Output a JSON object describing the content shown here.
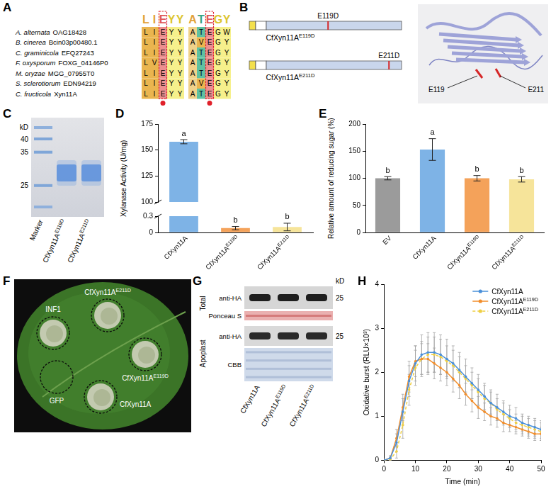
{
  "panels": {
    "A": {
      "letter": "A",
      "logo": [
        "LIEYY",
        "ATEGY"
      ],
      "rows": [
        {
          "species": "A. alternata",
          "accession": "OAG18428",
          "blocks": [
            "LIEYY",
            "ATEGW"
          ]
        },
        {
          "species": "B. cinerea",
          "accession": "Bcin03p00480.1",
          "blocks": [
            "LIEYY",
            "AVEGY"
          ]
        },
        {
          "species": "C. graminicola",
          "accession": "EFQ27243",
          "blocks": [
            "LIEYY",
            "ATEGY"
          ]
        },
        {
          "species": "F. oxysporum",
          "accession": "FOXG_04146P0",
          "blocks": [
            "LVEYY",
            "ATEGY"
          ]
        },
        {
          "species": "M. oryzae",
          "accession": "MGG_07955T0",
          "blocks": [
            "LIEYY",
            "ATEGY"
          ]
        },
        {
          "species": "S. sclerotiorum",
          "accession": "EDN94219",
          "blocks": [
            "LIEYY",
            "AVEGY"
          ]
        },
        {
          "species": "C. fructicola",
          "accession": "Xyn11A",
          "blocks": [
            "LIEYY",
            "ATEGY"
          ]
        }
      ],
      "marked_columns": [
        2,
        2
      ]
    },
    "B": {
      "letter": "B",
      "constructs": [
        {
          "mutation": "E119D",
          "name": "CfXyn11AE119D"
        },
        {
          "mutation": "E211D",
          "name": "CfXyn11AE211D"
        }
      ],
      "structure_labels": [
        "E119",
        "E211"
      ]
    },
    "C": {
      "letter": "C",
      "unit": "kD",
      "ladder": [
        40,
        35,
        25
      ],
      "lanes": [
        "Marker",
        "CfXyn11AE119D",
        "CfXyn11AE211D"
      ]
    },
    "F": {
      "letter": "F",
      "spots": [
        {
          "label": "INF1",
          "necrosis": true
        },
        {
          "label": "CfXyn11AE211D",
          "necrosis": true
        },
        {
          "label": "CfXyn11AE119D",
          "necrosis": true
        },
        {
          "label": "GFP",
          "necrosis": false
        },
        {
          "label": "CfXyn11A",
          "necrosis": true
        }
      ]
    },
    "G": {
      "letter": "G",
      "unit": "kD",
      "groups": [
        {
          "name": "Total",
          "rows": [
            {
              "label": "anti-HA",
              "size": 25
            },
            {
              "label": "Ponceau S"
            }
          ]
        },
        {
          "name": "Apoplast",
          "rows": [
            {
              "label": "anti-HA",
              "size": 25
            },
            {
              "label": "CBB"
            }
          ]
        }
      ],
      "lanes": [
        "CfXyn11A",
        "CfXyn11AE119D",
        "CfXyn11AE211D"
      ]
    }
  },
  "chart_data": [
    {
      "panel": "D",
      "type": "bar",
      "categories": [
        "CfXyn11A",
        "CfXyn11AE119D",
        "CfXyn11AE211D"
      ],
      "values": [
        158,
        0.08,
        0.1
      ],
      "errors": [
        2,
        0.03,
        0.07
      ],
      "letters": [
        "a",
        "b",
        "b"
      ],
      "colors": [
        "#7eb3e6",
        "#f4a25a",
        "#f6e49a"
      ],
      "ylabel": "Xylanase Activity (U/mg)",
      "ylim": [
        0,
        175
      ],
      "yticks": [
        0,
        0.3,
        100,
        125,
        150,
        175
      ],
      "y_break": [
        0.3,
        100
      ],
      "grid": false
    },
    {
      "panel": "E",
      "type": "bar",
      "categories": [
        "EV",
        "CfXyn11A",
        "CfXyn11AE119D",
        "CfXyn11AE211D"
      ],
      "values": [
        100,
        153,
        100,
        98
      ],
      "errors": [
        3,
        20,
        5,
        5
      ],
      "letters": [
        "b",
        "a",
        "b",
        "b"
      ],
      "colors": [
        "#9b9b9b",
        "#7eb3e6",
        "#f4a25a",
        "#f6e49a"
      ],
      "ylabel": "Relative amount of reducing sugar (%)",
      "ylim": [
        0,
        200
      ],
      "yticks": [
        0,
        50,
        100,
        150,
        200
      ],
      "grid": false
    },
    {
      "panel": "H",
      "type": "line",
      "x": [
        0,
        2,
        4,
        6,
        8,
        10,
        12,
        14,
        16,
        18,
        20,
        22,
        24,
        26,
        28,
        30,
        32,
        34,
        36,
        38,
        40,
        42,
        44,
        46,
        48,
        50
      ],
      "series": [
        {
          "name": "CfXyn11A",
          "color": "#4a90d9",
          "marker": "circle",
          "line_style": "solid",
          "values": [
            0,
            0.05,
            0.4,
            1.1,
            1.8,
            2.2,
            2.4,
            2.45,
            2.45,
            2.4,
            2.3,
            2.2,
            2.05,
            1.9,
            1.75,
            1.6,
            1.45,
            1.3,
            1.2,
            1.1,
            1.0,
            0.95,
            0.85,
            0.8,
            0.75,
            0.7
          ],
          "errors": [
            0,
            0.05,
            0.2,
            0.3,
            0.35,
            0.4,
            0.45,
            0.45,
            0.45,
            0.45,
            0.45,
            0.4,
            0.4,
            0.4,
            0.35,
            0.35,
            0.3,
            0.3,
            0.3,
            0.25,
            0.25,
            0.25,
            0.2,
            0.2,
            0.2,
            0.2
          ]
        },
        {
          "name": "CfXyn11AE119D",
          "color": "#f28e2b",
          "marker": "circle",
          "line_style": "solid",
          "values": [
            0,
            0.05,
            0.5,
            1.2,
            1.9,
            2.25,
            2.3,
            2.3,
            2.2,
            2.1,
            2.0,
            1.85,
            1.7,
            1.5,
            1.35,
            1.2,
            1.1,
            1.0,
            0.95,
            0.85,
            0.8,
            0.75,
            0.7,
            0.65,
            0.6,
            0.6
          ],
          "errors": [
            0,
            0.05,
            0.2,
            0.3,
            0.35,
            0.35,
            0.35,
            0.35,
            0.35,
            0.3,
            0.3,
            0.3,
            0.3,
            0.25,
            0.25,
            0.25,
            0.2,
            0.2,
            0.2,
            0.2,
            0.15,
            0.15,
            0.15,
            0.15,
            0.15,
            0.15
          ]
        },
        {
          "name": "CfXyn11AE211D",
          "color": "#efcf45",
          "marker": "circle",
          "line_style": "dashed",
          "values": [
            0,
            0.02,
            0.2,
            0.8,
            1.6,
            2.1,
            2.3,
            2.4,
            2.4,
            2.35,
            2.25,
            2.15,
            2.0,
            1.85,
            1.7,
            1.55,
            1.4,
            1.3,
            1.15,
            1.05,
            0.95,
            0.85,
            0.8,
            0.75,
            0.7,
            0.65
          ],
          "errors": [
            0,
            0.02,
            0.15,
            0.3,
            0.35,
            0.4,
            0.4,
            0.4,
            0.4,
            0.4,
            0.35,
            0.35,
            0.35,
            0.3,
            0.3,
            0.3,
            0.3,
            0.25,
            0.25,
            0.25,
            0.2,
            0.2,
            0.2,
            0.2,
            0.2,
            0.2
          ]
        }
      ],
      "xlabel": "Time (min)",
      "ylabel": "Oxidative burst (RLU×10³)",
      "xlim": [
        0,
        50
      ],
      "xticks": [
        0,
        10,
        20,
        30,
        40,
        50
      ],
      "ylim": [
        0,
        4
      ],
      "yticks": [
        0,
        1,
        2,
        3,
        4
      ],
      "legend": "top-right",
      "grid": false
    }
  ]
}
